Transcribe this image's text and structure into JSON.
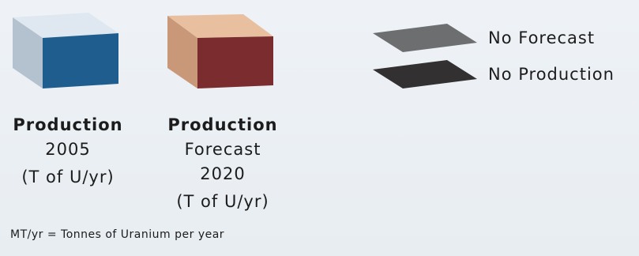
{
  "swatches": {
    "production_2005": {
      "label_lines": [
        "Production",
        "2005",
        "(T of U/yr)"
      ],
      "colors": {
        "top": "#dfe8f0",
        "front": "#1f5d8f",
        "side": "#b4c2cf"
      }
    },
    "production_forecast_2020": {
      "label_lines": [
        "Production",
        "Forecast",
        "2020",
        "(T of U/yr)"
      ],
      "colors": {
        "top": "#e8c0a0",
        "front": "#7b2c2e",
        "side": "#c99878"
      }
    }
  },
  "key": {
    "no_forecast": {
      "label": "No Forecast",
      "color": "#6d6e6f"
    },
    "no_production": {
      "label": "No Production",
      "color": "#323030"
    }
  },
  "footnote": "MT/yr = Tonnes of Uranium per year"
}
